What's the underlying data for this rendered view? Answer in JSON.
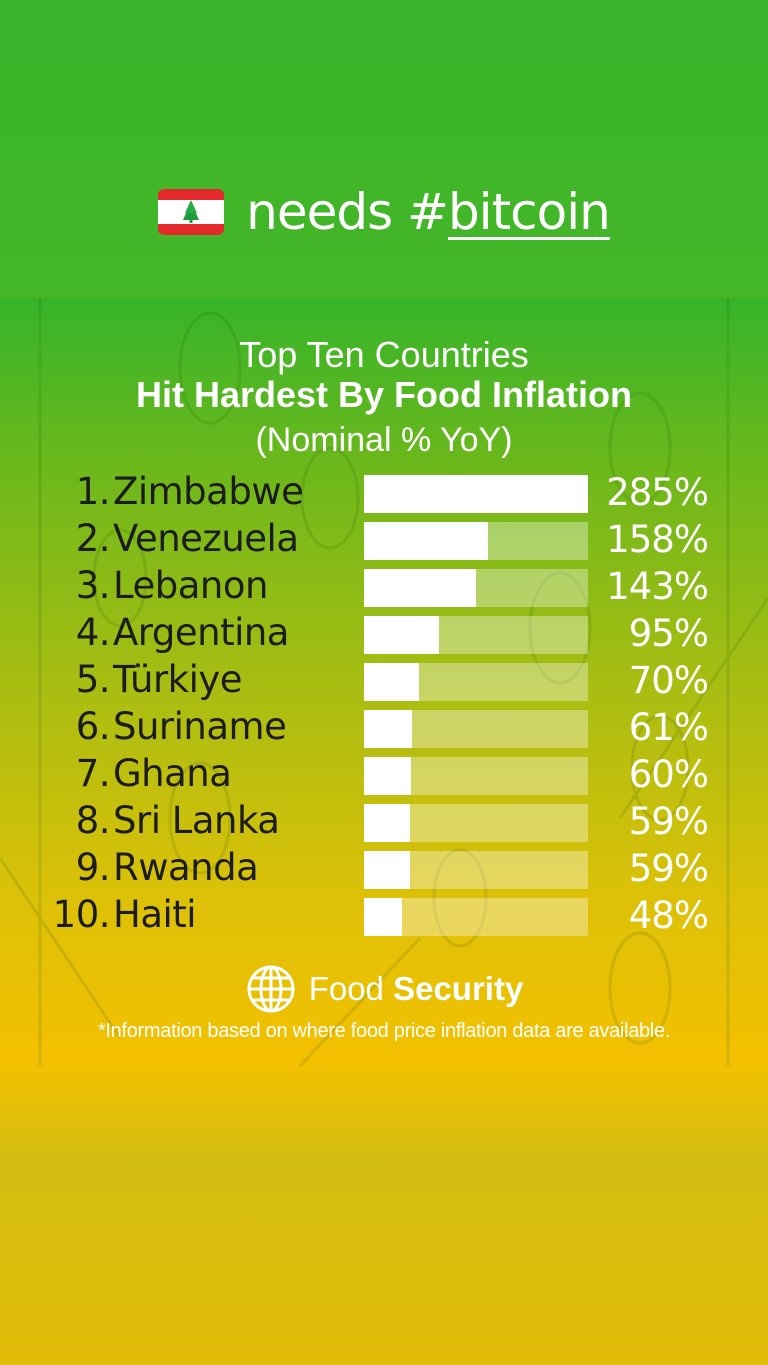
{
  "header": {
    "flag_icon": "lebanon-flag-icon",
    "text_prefix": "needs #",
    "text_word": "bitcoin"
  },
  "colors": {
    "top_green": "#37b42b",
    "bottom_yellow": "#f4c000",
    "bar": "#ffffff",
    "label_text": "#1c1c1c",
    "value_text": "#ffffff"
  },
  "chart_data": {
    "type": "bar",
    "orientation": "horizontal",
    "title": [
      "Top Ten Countries",
      "Hit Hardest By Food Inflation",
      "(Nominal % YoY)"
    ],
    "ranks": [
      "1.",
      "2.",
      "3.",
      "4.",
      "5.",
      "6.",
      "7.",
      "8.",
      "9.",
      "10."
    ],
    "categories": [
      "Zimbabwe",
      "Venezuela",
      "Lebanon",
      "Argentina",
      "Türkiye",
      "Suriname",
      "Ghana",
      "Sri Lanka",
      "Rwanda",
      "Haiti"
    ],
    "values": [
      285,
      158,
      143,
      95,
      70,
      61,
      60,
      59,
      59,
      48
    ],
    "value_labels": [
      "285%",
      "158%",
      "143%",
      "95%",
      "70%",
      "61%",
      "60%",
      "59%",
      "59%",
      "48%"
    ],
    "xlim": [
      0,
      285
    ],
    "grid": false,
    "legend": "none"
  },
  "footer": {
    "logo_icon": "globe-icon",
    "logo_light": "Food",
    "logo_bold": "Security",
    "footnote": "*Information based on where food price inflation data are available."
  }
}
